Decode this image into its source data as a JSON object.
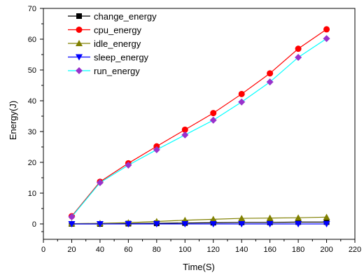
{
  "chart_data": {
    "type": "line",
    "xlabel": "Time(S)",
    "ylabel": "Energy(J)",
    "xlim": [
      0,
      220
    ],
    "ylim": [
      -5,
      70
    ],
    "xticks": [
      0,
      20,
      40,
      60,
      80,
      100,
      120,
      140,
      160,
      180,
      200,
      220
    ],
    "yticks": [
      0,
      10,
      20,
      30,
      40,
      50,
      60,
      70
    ],
    "grid": false,
    "legend_position": "top-left",
    "x": [
      20,
      40,
      60,
      80,
      100,
      120,
      140,
      160,
      180,
      200
    ],
    "series": [
      {
        "name": "change_energy",
        "color": "#000000",
        "marker": "square",
        "values": [
          0.0,
          0.0,
          0.1,
          0.2,
          0.3,
          0.4,
          0.5,
          0.5,
          0.6,
          0.6
        ]
      },
      {
        "name": "cpu_energy",
        "color": "#ff0000",
        "marker": "circle",
        "values": [
          2.5,
          13.7,
          19.7,
          25.2,
          30.6,
          36.0,
          42.2,
          48.9,
          56.9,
          63.2
        ]
      },
      {
        "name": "idle_energy",
        "color": "#808000",
        "marker": "triangle-up",
        "values": [
          0.1,
          0.2,
          0.4,
          0.8,
          1.2,
          1.5,
          1.8,
          1.9,
          2.0,
          2.2
        ]
      },
      {
        "name": "sleep_energy",
        "color": "#0000ff",
        "marker": "triangle-down",
        "values": [
          0.0,
          0.0,
          0.0,
          0.0,
          0.0,
          0.0,
          0.0,
          0.0,
          0.0,
          0.0
        ]
      },
      {
        "name": "run_energy",
        "color": "#00ffff",
        "markerColor": "#9932cc",
        "marker": "diamond",
        "values": [
          2.3,
          13.4,
          19.1,
          24.1,
          28.9,
          33.7,
          39.6,
          46.1,
          54.1,
          60.2
        ]
      }
    ]
  }
}
